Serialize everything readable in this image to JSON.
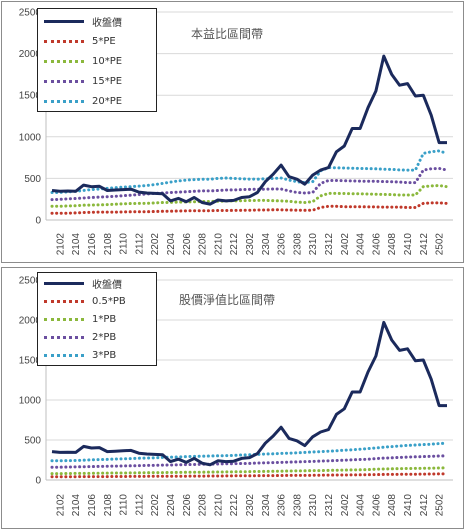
{
  "chart_data": [
    {
      "type": "line",
      "title": "本益比區間帶",
      "ylim": [
        0,
        2500
      ],
      "yticks": [
        "0",
        "500",
        "1000",
        "1500",
        "2000",
        "2500"
      ],
      "grid": true,
      "legend_position": "top-left",
      "x": [
        "2101",
        "2102",
        "2103",
        "2104",
        "2105",
        "2106",
        "2107",
        "2108",
        "2109",
        "2110",
        "2111",
        "2112",
        "2201",
        "2202",
        "2203",
        "2204",
        "2205",
        "2206",
        "2207",
        "2208",
        "2209",
        "2210",
        "2211",
        "2212",
        "2301",
        "2302",
        "2303",
        "2304",
        "2305",
        "2306",
        "2307",
        "2308",
        "2309",
        "2310",
        "2311",
        "2312",
        "2401",
        "2402",
        "2403",
        "2404",
        "2405",
        "2406",
        "2407",
        "2408",
        "2409",
        "2410",
        "2411",
        "2412",
        "2501",
        "2502",
        "2503"
      ],
      "xtick_labels": [
        "2102",
        "2104",
        "2106",
        "2108",
        "2110",
        "2112",
        "2202",
        "2204",
        "2206",
        "2208",
        "2210",
        "2212",
        "2302",
        "2304",
        "2306",
        "2308",
        "2310",
        "2312",
        "2402",
        "2404",
        "2406",
        "2408",
        "2410",
        "2412",
        "2502"
      ],
      "series": [
        {
          "name": "收盤價",
          "color": "#1b2a5c",
          "style": "solid",
          "values": [
            355,
            345,
            348,
            345,
            420,
            400,
            405,
            355,
            360,
            365,
            370,
            335,
            325,
            320,
            315,
            230,
            260,
            220,
            270,
            210,
            190,
            240,
            230,
            235,
            270,
            280,
            330,
            460,
            550,
            660,
            520,
            490,
            430,
            540,
            600,
            630,
            820,
            890,
            1100,
            1100,
            1350,
            1550,
            1970,
            1750,
            1620,
            1640,
            1490,
            1500,
            1260,
            930,
            930
          ]
        },
        {
          "name": "5*PE",
          "color": "#c0392b",
          "style": "dotted",
          "values": [
            80,
            80,
            82,
            85,
            90,
            92,
            95,
            95,
            95,
            97,
            98,
            100,
            100,
            102,
            104,
            106,
            108,
            110,
            112,
            112,
            112,
            114,
            114,
            115,
            116,
            118,
            120,
            120,
            122,
            122,
            120,
            118,
            116,
            118,
            150,
            165,
            165,
            160,
            160,
            160,
            158,
            158,
            155,
            155,
            155,
            150,
            150,
            200,
            205,
            205,
            200
          ]
        },
        {
          "name": "10*PE",
          "color": "#8bb83c",
          "style": "dotted",
          "values": [
            165,
            165,
            170,
            172,
            178,
            180,
            182,
            185,
            190,
            195,
            198,
            200,
            200,
            205,
            210,
            212,
            215,
            218,
            220,
            222,
            222,
            225,
            228,
            230,
            232,
            234,
            236,
            235,
            232,
            230,
            225,
            215,
            210,
            220,
            290,
            320,
            320,
            318,
            316,
            315,
            312,
            310,
            308,
            305,
            300,
            300,
            300,
            400,
            410,
            415,
            400
          ]
        },
        {
          "name": "15*PE",
          "color": "#6b4fa0",
          "style": "dotted",
          "values": [
            245,
            248,
            255,
            258,
            265,
            270,
            275,
            280,
            285,
            292,
            298,
            305,
            312,
            320,
            325,
            330,
            335,
            340,
            345,
            350,
            350,
            355,
            360,
            362,
            365,
            368,
            370,
            370,
            372,
            372,
            350,
            330,
            325,
            330,
            440,
            475,
            475,
            472,
            470,
            468,
            465,
            465,
            462,
            460,
            455,
            450,
            450,
            600,
            615,
            620,
            600
          ]
        },
        {
          "name": "20*PE",
          "color": "#3aa0c8",
          "style": "dotted",
          "values": [
            330,
            332,
            338,
            345,
            355,
            365,
            372,
            380,
            388,
            395,
            400,
            408,
            415,
            425,
            440,
            455,
            470,
            480,
            485,
            490,
            490,
            500,
            505,
            500,
            495,
            492,
            490,
            495,
            500,
            505,
            480,
            460,
            450,
            460,
            590,
            630,
            628,
            625,
            622,
            620,
            618,
            615,
            610,
            608,
            602,
            600,
            600,
            800,
            820,
            830,
            800
          ]
        }
      ]
    },
    {
      "type": "line",
      "title": "股價淨值比區間帶",
      "ylim": [
        0,
        2500
      ],
      "yticks": [
        "0",
        "500",
        "1000",
        "1500",
        "2000",
        "2500"
      ],
      "grid": true,
      "legend_position": "top-left",
      "x": [
        "2101",
        "2102",
        "2103",
        "2104",
        "2105",
        "2106",
        "2107",
        "2108",
        "2109",
        "2110",
        "2111",
        "2112",
        "2201",
        "2202",
        "2203",
        "2204",
        "2205",
        "2206",
        "2207",
        "2208",
        "2209",
        "2210",
        "2211",
        "2212",
        "2301",
        "2302",
        "2303",
        "2304",
        "2305",
        "2306",
        "2307",
        "2308",
        "2309",
        "2310",
        "2311",
        "2312",
        "2401",
        "2402",
        "2403",
        "2404",
        "2405",
        "2406",
        "2407",
        "2408",
        "2409",
        "2410",
        "2411",
        "2412",
        "2501",
        "2502",
        "2503"
      ],
      "xtick_labels": [
        "2102",
        "2104",
        "2106",
        "2108",
        "2110",
        "2112",
        "2202",
        "2204",
        "2206",
        "2208",
        "2210",
        "2212",
        "2302",
        "2304",
        "2306",
        "2308",
        "2310",
        "2312",
        "2402",
        "2404",
        "2406",
        "2408",
        "2410",
        "2412",
        "2502"
      ],
      "series": [
        {
          "name": "收盤價",
          "color": "#1b2a5c",
          "style": "solid",
          "values": [
            355,
            345,
            348,
            345,
            420,
            400,
            405,
            355,
            360,
            365,
            370,
            335,
            325,
            320,
            315,
            230,
            260,
            220,
            270,
            210,
            190,
            240,
            230,
            235,
            270,
            280,
            330,
            460,
            550,
            660,
            520,
            490,
            430,
            540,
            600,
            630,
            820,
            890,
            1100,
            1100,
            1350,
            1550,
            1970,
            1750,
            1620,
            1640,
            1490,
            1500,
            1260,
            930,
            930
          ]
        },
        {
          "name": "0.5*PB",
          "color": "#c0392b",
          "style": "dotted",
          "values": [
            40,
            40,
            41,
            41,
            42,
            42,
            43,
            43,
            44,
            44,
            45,
            45,
            46,
            46,
            47,
            47,
            48,
            48,
            49,
            49,
            50,
            50,
            51,
            52,
            52,
            53,
            54,
            55,
            55,
            56,
            57,
            58,
            58,
            59,
            60,
            61,
            62,
            63,
            64,
            65,
            66,
            68,
            70,
            70,
            71,
            72,
            73,
            74,
            75,
            76,
            78
          ]
        },
        {
          "name": "1*PB",
          "color": "#8bb83c",
          "style": "dotted",
          "values": [
            80,
            80,
            81,
            82,
            83,
            84,
            85,
            86,
            87,
            88,
            89,
            90,
            91,
            92,
            93,
            94,
            95,
            96,
            97,
            98,
            99,
            100,
            101,
            102,
            103,
            105,
            106,
            108,
            109,
            110,
            112,
            114,
            115,
            117,
            118,
            120,
            122,
            124,
            126,
            128,
            130,
            135,
            138,
            140,
            142,
            144,
            145,
            146,
            148,
            150,
            152
          ]
        },
        {
          "name": "2*PB",
          "color": "#6b4fa0",
          "style": "dotted",
          "values": [
            160,
            160,
            162,
            164,
            166,
            168,
            170,
            172,
            174,
            176,
            178,
            180,
            182,
            184,
            186,
            188,
            190,
            192,
            194,
            196,
            198,
            200,
            202,
            204,
            206,
            208,
            212,
            215,
            218,
            220,
            224,
            226,
            230,
            232,
            236,
            240,
            244,
            248,
            252,
            256,
            260,
            268,
            274,
            278,
            282,
            286,
            290,
            292,
            296,
            300,
            302
          ]
        },
        {
          "name": "3*PB",
          "color": "#3aa0c8",
          "style": "dotted",
          "values": [
            240,
            240,
            242,
            244,
            248,
            252,
            255,
            258,
            262,
            265,
            268,
            272,
            275,
            278,
            282,
            285,
            288,
            292,
            295,
            298,
            300,
            302,
            305,
            308,
            312,
            315,
            320,
            325,
            328,
            332,
            335,
            340,
            345,
            350,
            355,
            360,
            365,
            372,
            378,
            385,
            392,
            400,
            410,
            418,
            425,
            432,
            438,
            442,
            448,
            455,
            460
          ]
        }
      ]
    }
  ]
}
